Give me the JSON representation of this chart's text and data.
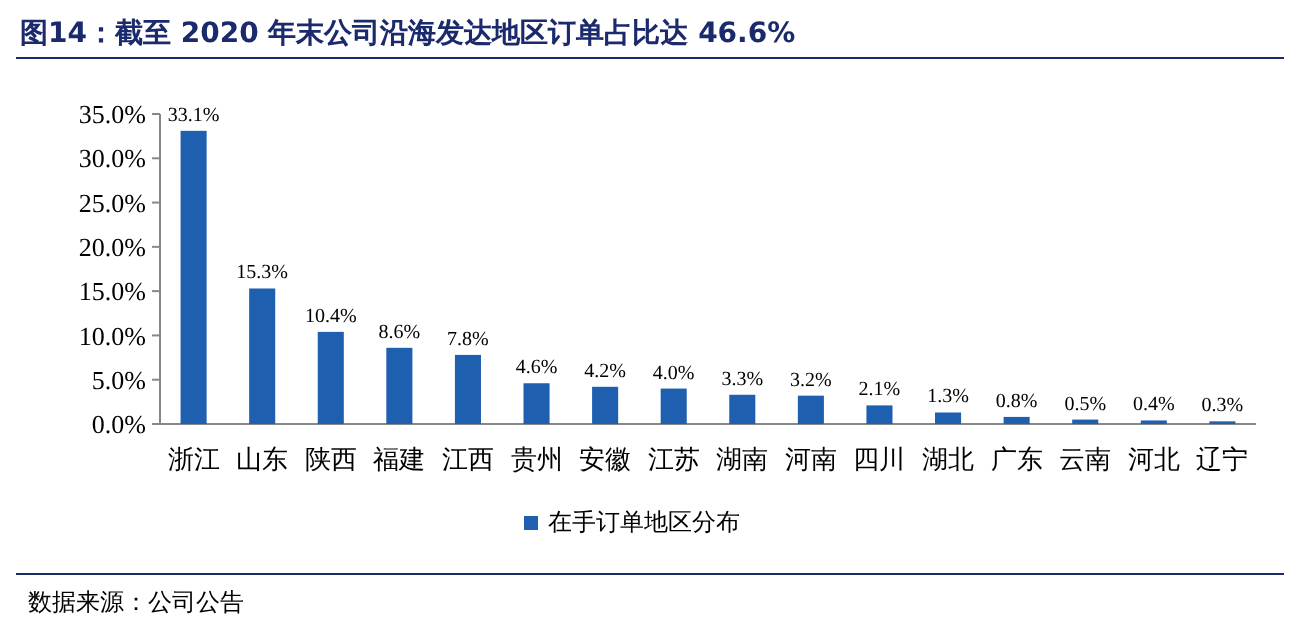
{
  "chart_data": {
    "type": "bar",
    "title": "图14：截至 2020 年末公司沿海发达地区订单占比达 46.6%",
    "categories": [
      "浙江",
      "山东",
      "陕西",
      "福建",
      "江西",
      "贵州",
      "安徽",
      "江苏",
      "湖南",
      "河南",
      "四川",
      "湖北",
      "广东",
      "云南",
      "河北",
      "辽宁"
    ],
    "series": [
      {
        "name": "在手订单地区分布",
        "color": "#1f5fb0",
        "values": [
          33.1,
          15.3,
          10.4,
          8.6,
          7.8,
          4.6,
          4.2,
          4.0,
          3.3,
          3.2,
          2.1,
          1.3,
          0.8,
          0.5,
          0.4,
          0.3
        ],
        "value_labels": [
          "33.1%",
          "15.3%",
          "10.4%",
          "8.6%",
          "7.8%",
          "4.6%",
          "4.2%",
          "4.0%",
          "3.3%",
          "3.2%",
          "2.1%",
          "1.3%",
          "0.8%",
          "0.5%",
          "0.4%",
          "0.3%"
        ]
      }
    ],
    "ylim": [
      0,
      35
    ],
    "yticks": [
      {
        "value": 0,
        "label": "0.0%"
      },
      {
        "value": 5,
        "label": "5.0%"
      },
      {
        "value": 10,
        "label": "10.0%"
      },
      {
        "value": 15,
        "label": "15.0%"
      },
      {
        "value": 20,
        "label": "20.0%"
      },
      {
        "value": 25,
        "label": "25.0%"
      },
      {
        "value": 30,
        "label": "30.0%"
      },
      {
        "value": 35,
        "label": "35.0%"
      }
    ],
    "grid": false,
    "legend": "bottom",
    "annotations": [
      "数据来源：公司公告"
    ]
  }
}
